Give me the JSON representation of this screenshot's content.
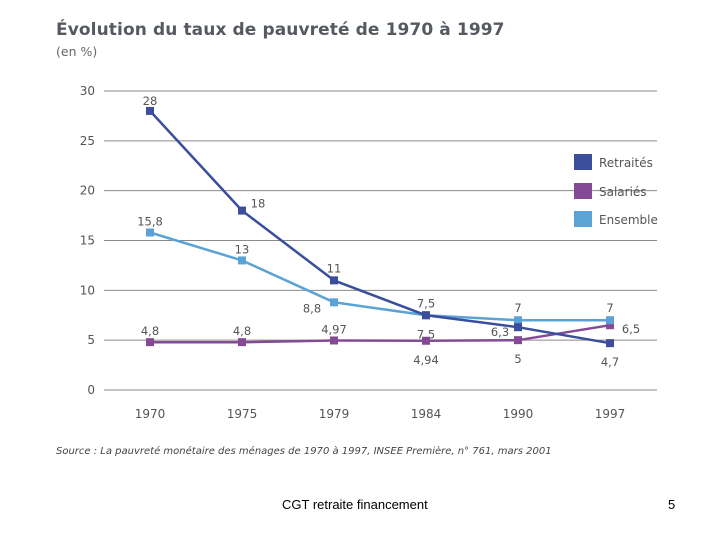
{
  "chart_data": {
    "type": "line",
    "title": "Évolution du taux de pauvreté de 1970 à 1997",
    "subtitle": "(en %)",
    "categories": [
      "1970",
      "1975",
      "1979",
      "1984",
      "1990",
      "1997"
    ],
    "yticks": [
      "0",
      "5",
      "10",
      "15",
      "20",
      "25",
      "30"
    ],
    "ylim": [
      0,
      30
    ],
    "grid": true,
    "legend_position": "right",
    "series": [
      {
        "name": "Retraités",
        "color": "#3a4e9c",
        "values": [
          28,
          18,
          11,
          7.5,
          6.3,
          4.7
        ],
        "labels": [
          "28",
          "18",
          "11",
          "7,5",
          "6,3",
          "4,7"
        ]
      },
      {
        "name": "Salariés",
        "color": "#844a96",
        "values": [
          4.8,
          4.8,
          4.97,
          4.94,
          5,
          6.5
        ],
        "labels": [
          "4,8",
          "4,8",
          "4,97",
          "4,94",
          "5",
          "6,5"
        ]
      },
      {
        "name": "Ensemble",
        "color": "#5ba3d6",
        "values": [
          15.8,
          13,
          8.8,
          7.5,
          7,
          7
        ],
        "labels": [
          "15,8",
          "13",
          "8,8",
          "7,5",
          "7",
          "7"
        ]
      }
    ],
    "source": "Source : La pauvreté monétaire des ménages de 1970 à 1997, INSEE Première, n° 761, mars 2001"
  },
  "footer": {
    "text": "CGT retraite financement",
    "page_number": "5"
  }
}
